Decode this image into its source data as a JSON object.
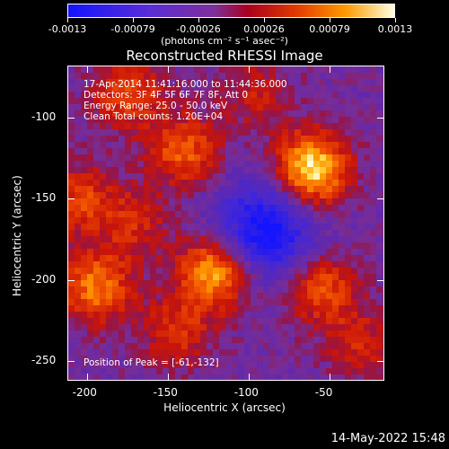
{
  "colorbar": {
    "labels": [
      "-0.0013",
      "-0.00079",
      "-0.00026",
      "0.00026",
      "0.00079",
      "0.0013"
    ],
    "units": "(photons cm⁻² s⁻¹ asec⁻²)"
  },
  "title": "Reconstructed RHESSI Image",
  "info": {
    "line1": "17-Apr-2014 11:41:16.000 to 11:44:36.000",
    "line2": "Detectors: 3F 4F 5F 6F 7F 8F, Att 0",
    "line3": "Energy Range: 25.0 - 50.0 keV",
    "line4": "Clean     Total counts: 1.20E+04",
    "peak": "Position of Peak = [-61,-132]"
  },
  "axes": {
    "xlabel": "Heliocentric X (arcsec)",
    "ylabel": "Heliocentric Y (arcsec)",
    "xticks": [
      "-200",
      "-150",
      "-100",
      "-50"
    ],
    "yticks": [
      "-100",
      "-150",
      "-200",
      "-250"
    ]
  },
  "timestamp": "14-May-2022 15:48",
  "chart_data": {
    "type": "heatmap",
    "title": "Reconstructed RHESSI Image",
    "xlabel": "Heliocentric X (arcsec)",
    "ylabel": "Heliocentric Y (arcsec)",
    "xlim": [
      -212,
      -16
    ],
    "ylim": [
      -262,
      -68
    ],
    "color_range": [
      -0.0013,
      0.0013
    ],
    "peak_position": [
      -61,
      -132
    ],
    "sources": [
      {
        "x": -61,
        "y": -132,
        "amplitude": 1.0
      },
      {
        "x": -120,
        "y": -195,
        "amplitude": 0.85
      },
      {
        "x": -140,
        "y": -120,
        "amplitude": 0.55
      },
      {
        "x": -175,
        "y": -85,
        "amplitude": 0.5
      },
      {
        "x": -195,
        "y": -205,
        "amplitude": 0.65
      },
      {
        "x": -55,
        "y": -205,
        "amplitude": 0.55
      },
      {
        "x": -145,
        "y": -232,
        "amplitude": 0.4
      },
      {
        "x": -170,
        "y": -165,
        "amplitude": 0.35
      },
      {
        "x": -95,
        "y": -85,
        "amplitude": 0.3
      },
      {
        "x": -205,
        "y": -150,
        "amplitude": 0.45
      },
      {
        "x": -30,
        "y": -240,
        "amplitude": 0.35
      }
    ],
    "minimum": {
      "x": -90,
      "y": -170,
      "amplitude": -0.8
    }
  }
}
